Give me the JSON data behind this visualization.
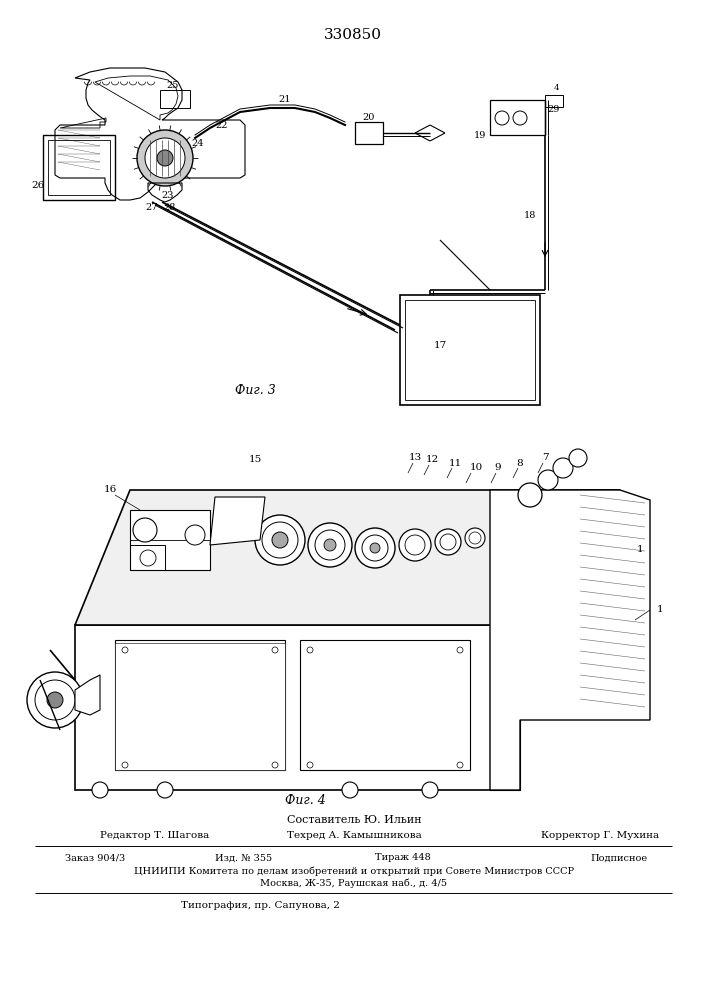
{
  "patent_number": "330850",
  "fig3_caption": "Фиг. 3",
  "fig4_caption": "Фиг. 4",
  "footer_composer": "Составитель Ю. Ильин",
  "footer_editor_label": "Редактор Т. Шагова",
  "footer_tech_label": "Техред А. Камышникова",
  "footer_corr_label": "Корректор Г. Мухина",
  "footer_order": "Заказ 904/3",
  "footer_pub": "Изд. № 355",
  "footer_copies": "Тираж 448",
  "footer_signed": "Подписное",
  "footer_org": "ЦНИИПИ Комитета по делам изобретений и открытий при Совете Министров СССР",
  "footer_address": "Москва, Ж-35, Раушская наб., д. 4/5",
  "footer_print": "Типография, пр. Сапунова, 2",
  "bg_color": "#ffffff"
}
